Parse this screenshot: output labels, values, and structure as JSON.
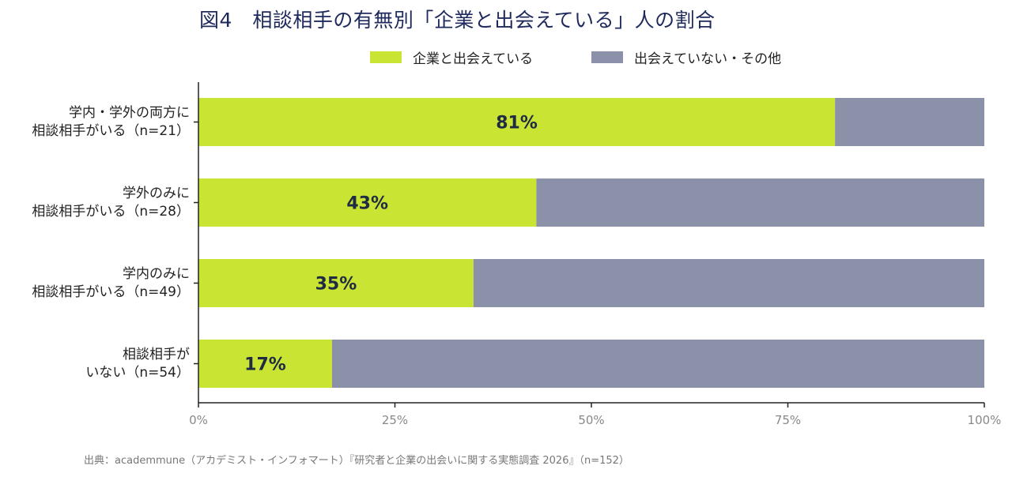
{
  "chart_data": {
    "type": "bar",
    "orientation": "horizontal",
    "stacked": true,
    "title": "図4　相談相手の有無別「企業と出会えている」人の割合",
    "categories": [
      [
        "学内・学外の両方に",
        "相談相手がいる（n=21）"
      ],
      [
        "学外のみに",
        "相談相手がいる（n=28）"
      ],
      [
        "学内のみに",
        "相談相手がいる（n=49）"
      ],
      [
        "相談相手が",
        "いない（n=54）"
      ]
    ],
    "series": [
      {
        "name": "企業と出会えている",
        "color": "#c9e432",
        "values": [
          81,
          43,
          35,
          17
        ]
      },
      {
        "name": "出会えていない・その他",
        "color": "#8c91aa",
        "values": [
          19,
          57,
          65,
          83
        ]
      }
    ],
    "data_labels": [
      "81%",
      "43%",
      "35%",
      "17%"
    ],
    "xlim": [
      0,
      100
    ],
    "xticks": [
      0,
      25,
      50,
      75,
      100
    ],
    "xtick_labels": [
      "0%",
      "25%",
      "50%",
      "75%",
      "100%"
    ],
    "legend_position": "top",
    "grid": false
  },
  "source": "出典：academmune（アカデミスト・インフォマート）『研究者と企業の出会いに関する実態調査 2026』（n=152）"
}
